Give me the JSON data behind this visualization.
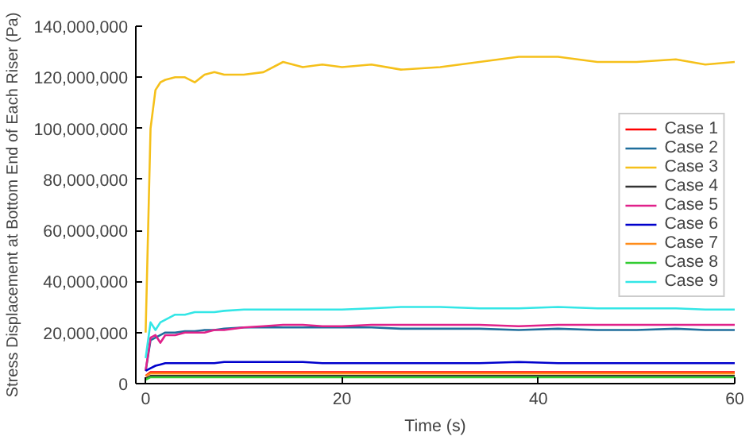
{
  "chart_data": {
    "type": "line",
    "xlabel": "Time (s)",
    "ylabel": "Stress Displacement at Bottom End of Each Riser (Pa)",
    "x": [
      0,
      0.5,
      1,
      1.5,
      2,
      3,
      4,
      5,
      6,
      7,
      8,
      10,
      12,
      14,
      16,
      18,
      20,
      23,
      26,
      30,
      34,
      38,
      42,
      46,
      50,
      54,
      57,
      60
    ],
    "xlim": [
      -1,
      60
    ],
    "ylim": [
      0,
      140000000
    ],
    "xticks": [
      0,
      20,
      40,
      60
    ],
    "yticks": [
      {
        "value": 0,
        "label": "0"
      },
      {
        "value": 20000000,
        "label": "20,000,000"
      },
      {
        "value": 40000000,
        "label": "40,000,000"
      },
      {
        "value": 60000000,
        "label": "60,000,000"
      },
      {
        "value": 80000000,
        "label": "80,000,000"
      },
      {
        "value": 100000000,
        "label": "100,000,000"
      },
      {
        "value": 120000000,
        "label": "120,000,000"
      },
      {
        "value": 140000000,
        "label": "140,000,000"
      }
    ],
    "legend": "right",
    "grid": false,
    "series": [
      {
        "name": "Case 1",
        "color": "#ff0000",
        "values": [
          3000000,
          4500000,
          4500000,
          4500000,
          4500000,
          4500000,
          4500000,
          4500000,
          4500000,
          4500000,
          4500000,
          4500000,
          4500000,
          4500000,
          4500000,
          4500000,
          4500000,
          4500000,
          4500000,
          4500000,
          4500000,
          4500000,
          4500000,
          4500000,
          4500000,
          4500000,
          4500000,
          4500000
        ]
      },
      {
        "name": "Case 2",
        "color": "#1f6e9c",
        "values": [
          5000000,
          17000000,
          18000000,
          19000000,
          20000000,
          20000000,
          20500000,
          20500000,
          21000000,
          21000000,
          21500000,
          22000000,
          22000000,
          22000000,
          22000000,
          22000000,
          22000000,
          22000000,
          21500000,
          21500000,
          21500000,
          21000000,
          21500000,
          21000000,
          21000000,
          21500000,
          21000000,
          21000000
        ]
      },
      {
        "name": "Case 3",
        "color": "#f5c01a",
        "values": [
          20000000,
          100000000,
          115000000,
          118000000,
          119000000,
          120000000,
          120000000,
          118000000,
          121000000,
          122000000,
          121000000,
          121000000,
          122000000,
          126000000,
          124000000,
          125000000,
          124000000,
          125000000,
          123000000,
          124000000,
          126000000,
          128000000,
          128000000,
          126000000,
          126000000,
          127000000,
          125000000,
          126000000
        ]
      },
      {
        "name": "Case 4",
        "color": "#333333",
        "values": [
          2000000,
          3000000,
          3000000,
          3000000,
          3000000,
          3000000,
          3000000,
          3000000,
          3000000,
          3000000,
          3000000,
          3000000,
          3000000,
          3000000,
          3000000,
          3000000,
          3000000,
          3000000,
          3000000,
          3000000,
          3000000,
          3000000,
          3000000,
          3000000,
          3000000,
          3000000,
          3000000,
          3000000
        ]
      },
      {
        "name": "Case 5",
        "color": "#e0218a",
        "values": [
          5000000,
          18000000,
          19000000,
          16000000,
          19000000,
          19000000,
          20000000,
          20000000,
          20000000,
          21000000,
          21000000,
          22000000,
          22500000,
          23000000,
          23000000,
          22500000,
          22500000,
          23000000,
          23000000,
          23000000,
          23000000,
          22500000,
          23000000,
          23000000,
          23000000,
          23000000,
          23000000,
          23000000
        ]
      },
      {
        "name": "Case 6",
        "color": "#0000cc",
        "values": [
          5000000,
          6000000,
          7000000,
          7500000,
          8000000,
          8000000,
          8000000,
          8000000,
          8000000,
          8000000,
          8500000,
          8500000,
          8500000,
          8500000,
          8500000,
          8000000,
          8000000,
          8000000,
          8000000,
          8000000,
          8000000,
          8500000,
          8000000,
          8000000,
          8000000,
          8000000,
          8000000,
          8000000
        ]
      },
      {
        "name": "Case 7",
        "color": "#ff8c1a",
        "values": [
          3000000,
          4000000,
          4000000,
          4000000,
          4000000,
          4000000,
          4000000,
          4000000,
          4000000,
          4000000,
          4000000,
          4000000,
          4000000,
          4000000,
          4000000,
          4000000,
          4000000,
          4000000,
          4000000,
          4000000,
          4000000,
          4000000,
          4000000,
          4000000,
          4000000,
          4000000,
          4000000,
          4000000
        ]
      },
      {
        "name": "Case 8",
        "color": "#33cc33",
        "values": [
          1500000,
          2500000,
          2500000,
          2500000,
          2500000,
          2500000,
          2500000,
          2500000,
          2500000,
          2500000,
          2500000,
          2500000,
          2500000,
          2500000,
          2500000,
          2500000,
          2500000,
          2500000,
          2500000,
          2500000,
          2500000,
          2500000,
          2500000,
          2500000,
          2500000,
          2500000,
          2500000,
          2500000
        ]
      },
      {
        "name": "Case 9",
        "color": "#33e6e6",
        "values": [
          10000000,
          24000000,
          21000000,
          24000000,
          25000000,
          27000000,
          27000000,
          28000000,
          28000000,
          28000000,
          28500000,
          29000000,
          29000000,
          29000000,
          29000000,
          29000000,
          29000000,
          29500000,
          30000000,
          30000000,
          29500000,
          29500000,
          30000000,
          29500000,
          29500000,
          29500000,
          29000000,
          29000000
        ]
      }
    ]
  }
}
